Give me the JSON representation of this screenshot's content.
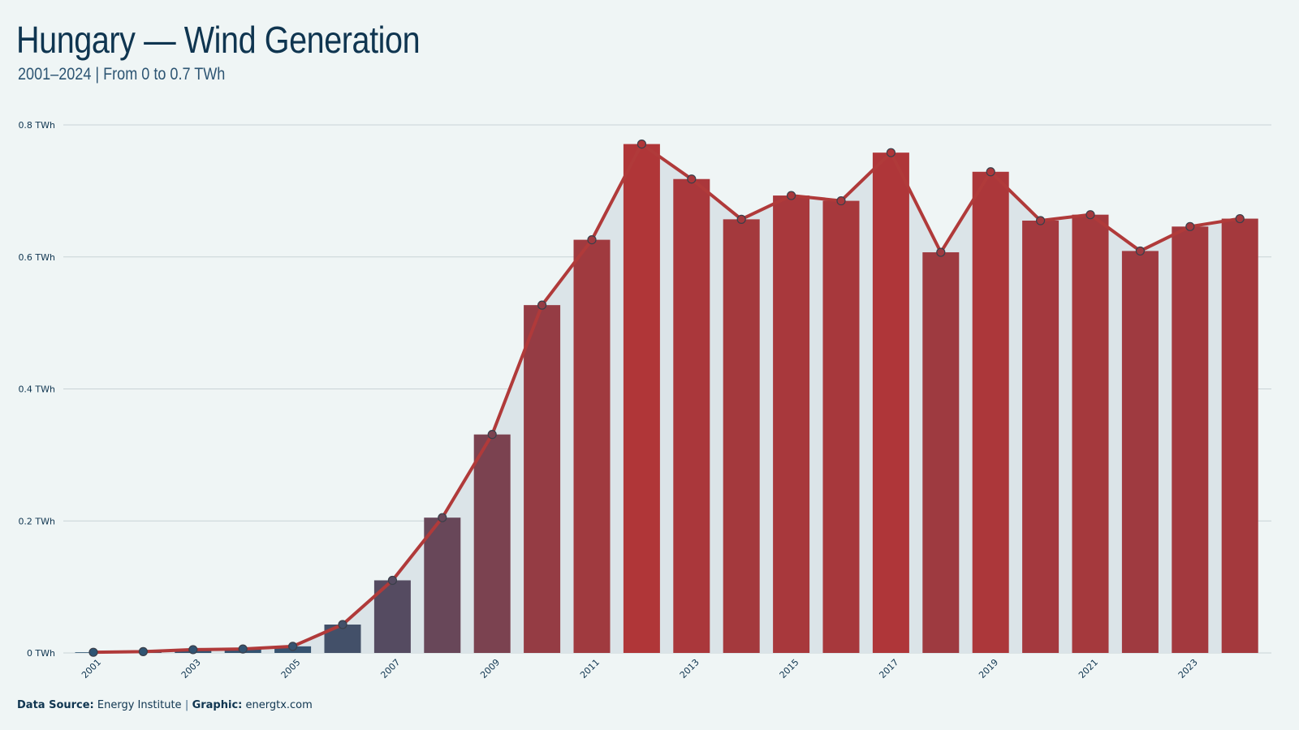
{
  "header": {
    "title": "Hungary — Wind Generation",
    "subtitle": "2001–2024 | From 0 to 0.7 TWh"
  },
  "footer": {
    "source_label": "Data Source:",
    "source_value": "Energy Institute",
    "separator": "|",
    "graphic_label": "Graphic:",
    "graphic_value": "energtx.com"
  },
  "colors": {
    "background": "#eff5f5",
    "line": "#b03a3a",
    "area_fill": "#dbe4e8",
    "bar_low": "#2c5574",
    "bar_high": "#b03638",
    "grid": "#c9d3d6",
    "text": "#0f3550"
  },
  "chart_data": {
    "type": "bar",
    "overlay": "line-with-markers-and-area",
    "categories": [
      "2001",
      "2002",
      "2003",
      "2004",
      "2005",
      "2006",
      "2007",
      "2008",
      "2009",
      "2010",
      "2011",
      "2012",
      "2013",
      "2014",
      "2015",
      "2016",
      "2017",
      "2018",
      "2019",
      "2020",
      "2021",
      "2022",
      "2023",
      "2024"
    ],
    "x_tick_labels": [
      "2001",
      "2003",
      "2005",
      "2007",
      "2009",
      "2011",
      "2013",
      "2015",
      "2017",
      "2019",
      "2021",
      "2023"
    ],
    "values": [
      0.001,
      0.002,
      0.005,
      0.006,
      0.01,
      0.043,
      0.11,
      0.205,
      0.331,
      0.527,
      0.626,
      0.771,
      0.718,
      0.657,
      0.693,
      0.685,
      0.758,
      0.607,
      0.729,
      0.655,
      0.664,
      0.609,
      0.646,
      0.658
    ],
    "ylim": [
      0,
      0.8
    ],
    "yticks": [
      0,
      0.2,
      0.4,
      0.6,
      0.8
    ],
    "ytick_labels": [
      "0 TWh",
      "0.2 TWh",
      "0.4 TWh",
      "0.6 TWh",
      "0.8 TWh"
    ],
    "grid": "horizontal"
  }
}
